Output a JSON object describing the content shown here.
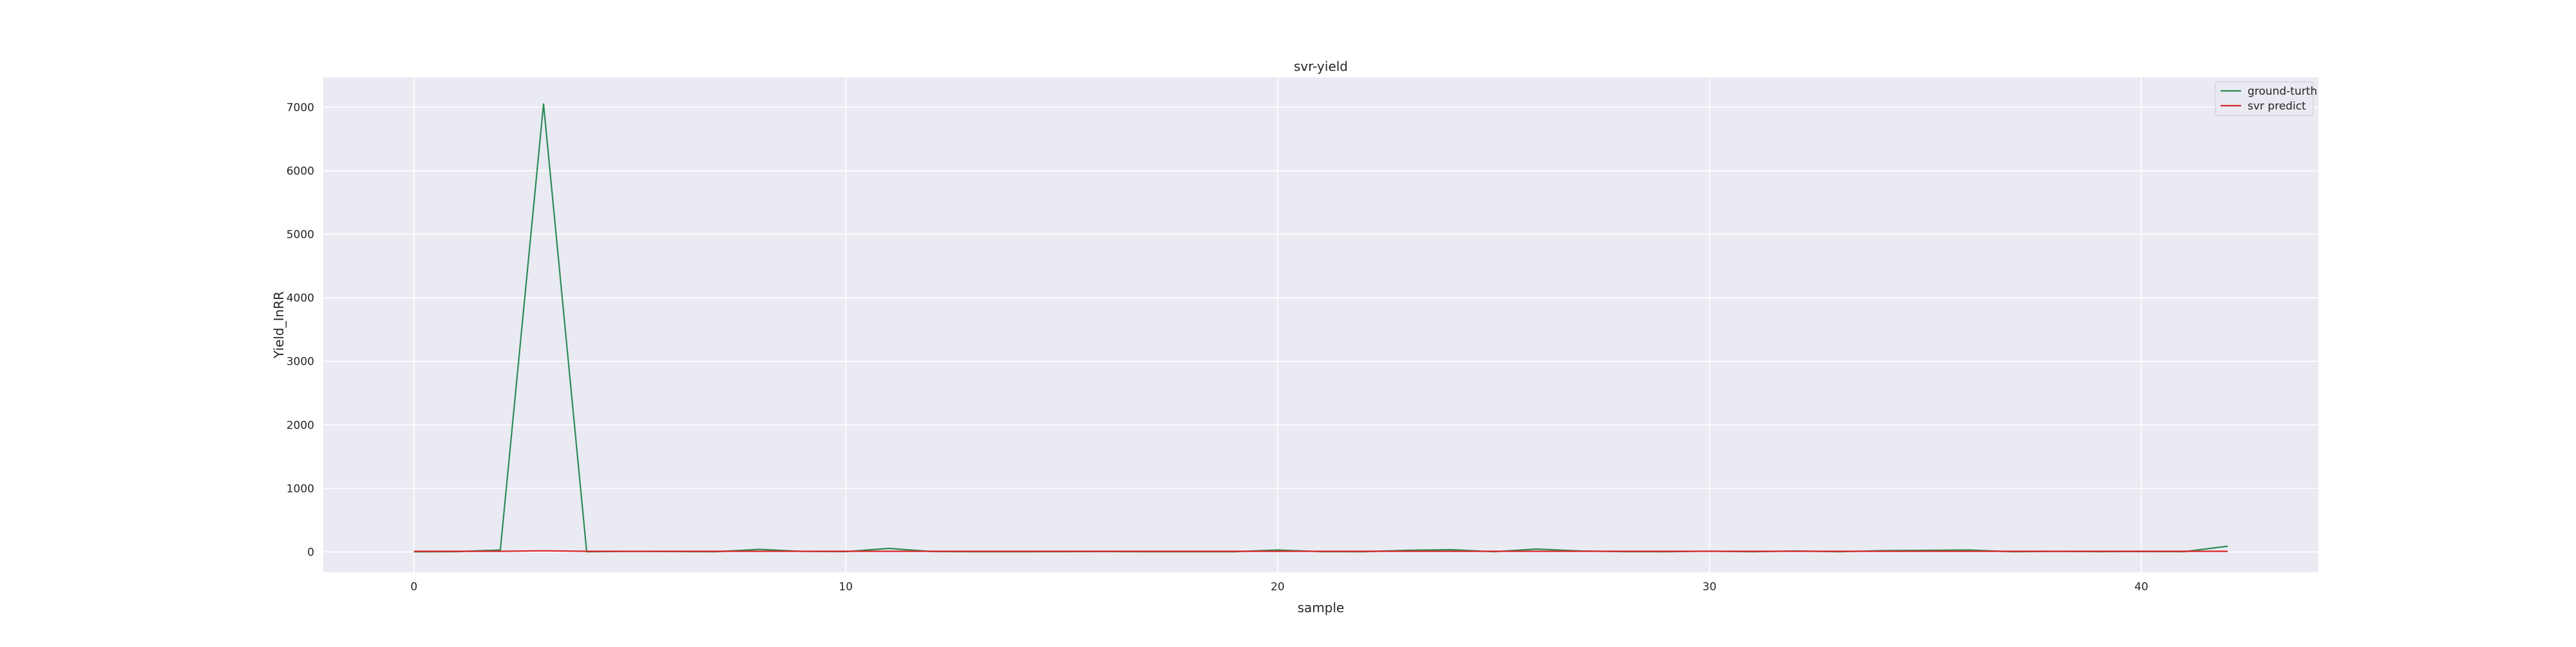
{
  "chart_data": {
    "type": "line",
    "title": "svr-yield",
    "xlabel": "sample",
    "ylabel": "Yield_InRR",
    "xlim": [
      -2.1,
      44.1
    ],
    "ylim": [
      -320,
      7470
    ],
    "xticks": [
      0,
      10,
      20,
      30,
      40
    ],
    "yticks": [
      0,
      1000,
      2000,
      3000,
      4000,
      5000,
      6000,
      7000
    ],
    "grid": true,
    "legend": {
      "placement": "top-right"
    },
    "background_color": "#eaeaf2",
    "x": [
      0,
      1,
      2,
      3,
      4,
      5,
      6,
      7,
      8,
      9,
      10,
      11,
      12,
      13,
      14,
      15,
      16,
      17,
      18,
      19,
      20,
      21,
      22,
      23,
      24,
      25,
      26,
      27,
      28,
      29,
      30,
      31,
      32,
      33,
      34,
      35,
      36,
      37,
      38,
      39,
      40,
      41,
      42
    ],
    "series": [
      {
        "name": "ground-turth",
        "color": "#2e8b57",
        "values": [
          2,
          5,
          30,
          7050,
          4,
          8,
          6,
          4,
          40,
          8,
          5,
          55,
          6,
          4,
          3,
          5,
          6,
          4,
          3,
          4,
          30,
          5,
          4,
          25,
          35,
          3,
          45,
          15,
          5,
          3,
          12,
          3,
          15,
          3,
          20,
          25,
          30,
          4,
          8,
          5,
          6,
          5,
          90
        ]
      },
      {
        "name": "svr predict",
        "color": "#d62728",
        "values": [
          10,
          10,
          10,
          18,
          10,
          10,
          10,
          10,
          10,
          10,
          10,
          10,
          10,
          10,
          10,
          10,
          10,
          10,
          10,
          10,
          10,
          10,
          10,
          10,
          10,
          10,
          10,
          10,
          10,
          10,
          10,
          10,
          10,
          10,
          10,
          10,
          10,
          10,
          10,
          10,
          10,
          10,
          10
        ]
      }
    ]
  }
}
